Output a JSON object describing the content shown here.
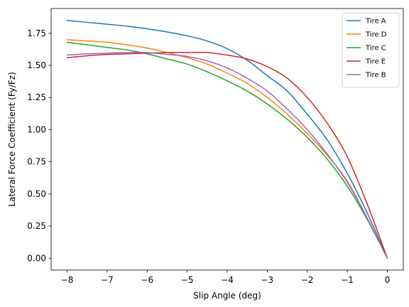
{
  "chart_data": {
    "type": "line",
    "title": "",
    "xlabel": "Slip Angle (deg)",
    "ylabel": "Lateral Force Coefficient (Fy/Fz)",
    "xlim": [
      -8.4,
      0.4
    ],
    "ylim": [
      -0.0925,
      1.9425
    ],
    "xticks": [
      -8,
      -7,
      -6,
      -5,
      -4,
      -3,
      -2,
      -1,
      0
    ],
    "xtick_labels": [
      "−8",
      "−7",
      "−6",
      "−5",
      "−4",
      "−3",
      "−2",
      "−1",
      "0"
    ],
    "yticks": [
      0.0,
      0.25,
      0.5,
      0.75,
      1.0,
      1.25,
      1.5,
      1.75
    ],
    "ytick_labels": [
      "0.00",
      "0.25",
      "0.50",
      "0.75",
      "1.00",
      "1.25",
      "1.50",
      "1.75"
    ],
    "grid": false,
    "legend_position": "top-right",
    "x": [
      -8,
      -7.5,
      -7,
      -6.5,
      -6,
      -5.5,
      -5,
      -4.5,
      -4,
      -3.5,
      -3,
      -2.5,
      -2,
      -1.5,
      -1,
      -0.5,
      0
    ],
    "series": [
      {
        "name": "Tire A",
        "color": "#1f77b4",
        "values": [
          1.85,
          1.835,
          1.82,
          1.805,
          1.785,
          1.76,
          1.73,
          1.69,
          1.63,
          1.54,
          1.42,
          1.3,
          1.12,
          0.92,
          0.66,
          0.35,
          0.0
        ]
      },
      {
        "name": "Tire D",
        "color": "#ff7f0e",
        "values": [
          1.7,
          1.69,
          1.68,
          1.66,
          1.635,
          1.6,
          1.56,
          1.51,
          1.44,
          1.36,
          1.25,
          1.12,
          0.97,
          0.8,
          0.6,
          0.31,
          0.0
        ]
      },
      {
        "name": "Tire C",
        "color": "#2ca02c",
        "values": [
          1.68,
          1.66,
          1.64,
          1.62,
          1.59,
          1.55,
          1.51,
          1.45,
          1.38,
          1.3,
          1.2,
          1.08,
          0.94,
          0.77,
          0.56,
          0.3,
          0.0
        ]
      },
      {
        "name": "Tire E",
        "color": "#d62728",
        "values": [
          1.56,
          1.575,
          1.585,
          1.59,
          1.595,
          1.6,
          1.6,
          1.6,
          1.58,
          1.55,
          1.49,
          1.4,
          1.25,
          1.05,
          0.79,
          0.42,
          0.0
        ]
      },
      {
        "name": "Tire B",
        "color": "#9467bd",
        "values": [
          1.58,
          1.59,
          1.595,
          1.6,
          1.6,
          1.585,
          1.57,
          1.535,
          1.48,
          1.4,
          1.3,
          1.16,
          1.0,
          0.81,
          0.59,
          0.31,
          0.0
        ]
      }
    ]
  }
}
